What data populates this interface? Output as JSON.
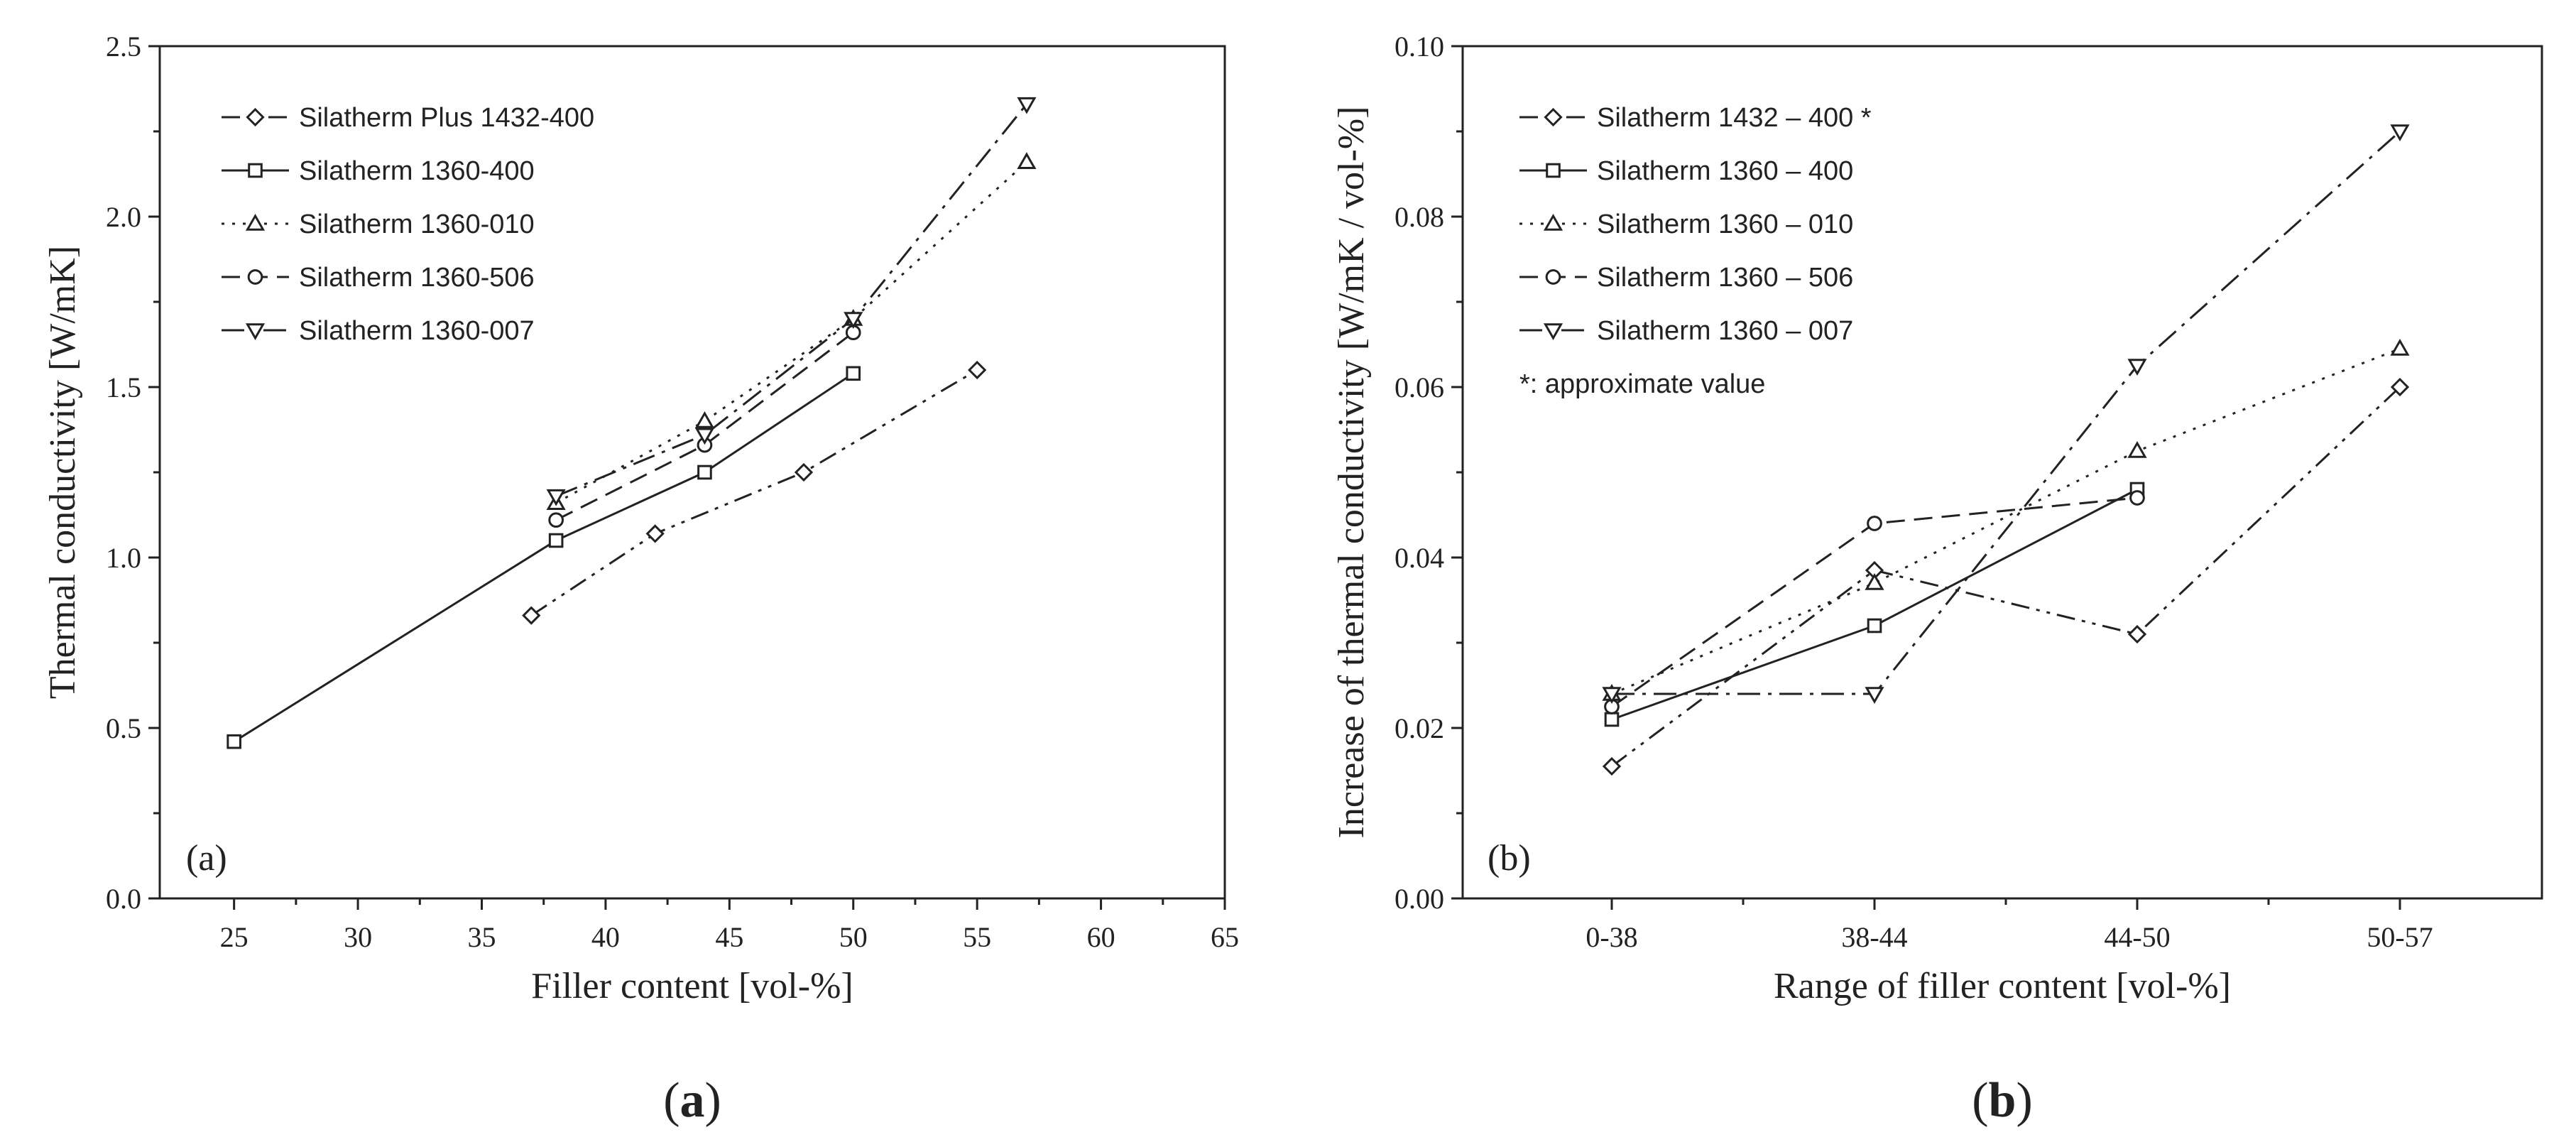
{
  "charts": [
    {
      "chart_data": {
        "type": "line",
        "panel_label": "(a)",
        "caption_open": "(",
        "caption_letter": "a",
        "caption_close": ")",
        "xlabel": "Filler content [vol-%]",
        "ylabel": "Thermal conductivity [W/mK]",
        "xlim": [
          22,
          65
        ],
        "ylim": [
          0.0,
          2.5
        ],
        "x_ticks": [
          25,
          30,
          35,
          40,
          45,
          50,
          55,
          60,
          65
        ],
        "x_tick_labels": [
          "25",
          "30",
          "35",
          "40",
          "45",
          "50",
          "55",
          "60",
          "65"
        ],
        "y_ticks": [
          0.0,
          0.5,
          1.0,
          1.5,
          2.0,
          2.5
        ],
        "y_tick_labels": [
          "0.0",
          "0.5",
          "1.0",
          "1.5",
          "2.0",
          "2.5"
        ],
        "legend_position": "top-left",
        "series": [
          {
            "name": "Silatherm Plus 1432-400",
            "style": "dashdotdot",
            "marker": "diamond",
            "x": [
              37,
              42,
              48,
              55
            ],
            "y": [
              0.83,
              1.07,
              1.25,
              1.55
            ]
          },
          {
            "name": "Silatherm 1360-400",
            "style": "solid",
            "marker": "square",
            "x": [
              25,
              38,
              44,
              50
            ],
            "y": [
              0.46,
              1.05,
              1.25,
              1.54
            ]
          },
          {
            "name": "Silatherm 1360-010",
            "style": "dotted",
            "marker": "triangle-up",
            "x": [
              38,
              44,
              50,
              57
            ],
            "y": [
              1.16,
              1.4,
              1.7,
              2.16
            ]
          },
          {
            "name": "Silatherm 1360-506",
            "style": "dashed",
            "marker": "circle",
            "x": [
              38,
              44,
              50
            ],
            "y": [
              1.11,
              1.33,
              1.66
            ]
          },
          {
            "name": "Silatherm 1360-007",
            "style": "dashdot",
            "marker": "triangle-down",
            "x": [
              38,
              44,
              50,
              57
            ],
            "y": [
              1.18,
              1.36,
              1.7,
              2.33
            ]
          }
        ]
      }
    },
    {
      "chart_data": {
        "type": "line",
        "panel_label": "(b)",
        "caption_open": "(",
        "caption_letter": "b",
        "caption_close": ")",
        "xlabel": "Range of filler content [vol-%]",
        "ylabel": "Increase of thermal conductivity [W/mK / vol-%]",
        "categories": [
          "0-38",
          "38-44",
          "44-50",
          "50-57"
        ],
        "ylim": [
          0.0,
          0.1
        ],
        "y_ticks": [
          0.0,
          0.02,
          0.04,
          0.06,
          0.08,
          0.1
        ],
        "y_tick_labels": [
          "0.00",
          "0.02",
          "0.04",
          "0.06",
          "0.08",
          "0.10"
        ],
        "legend_position": "top-left",
        "legend_note": "*: approximate value",
        "series": [
          {
            "name": "Silatherm 1432 – 400 *",
            "style": "dashdotdot",
            "marker": "diamond",
            "values": [
              0.0155,
              0.0385,
              0.031,
              0.06
            ]
          },
          {
            "name": "Silatherm 1360 – 400",
            "style": "solid",
            "marker": "square",
            "values": [
              0.021,
              0.032,
              0.048,
              null
            ]
          },
          {
            "name": "Silatherm 1360 – 010",
            "style": "dotted",
            "marker": "triangle-up",
            "values": [
              0.024,
              0.037,
              0.0525,
              0.0645
            ]
          },
          {
            "name": "Silatherm 1360 – 506",
            "style": "dashed",
            "marker": "circle",
            "values": [
              0.0225,
              0.044,
              0.047,
              null
            ]
          },
          {
            "name": "Silatherm 1360 – 007",
            "style": "dashdot",
            "marker": "triangle-down",
            "values": [
              0.024,
              0.024,
              0.0625,
              0.09
            ]
          }
        ]
      }
    }
  ]
}
